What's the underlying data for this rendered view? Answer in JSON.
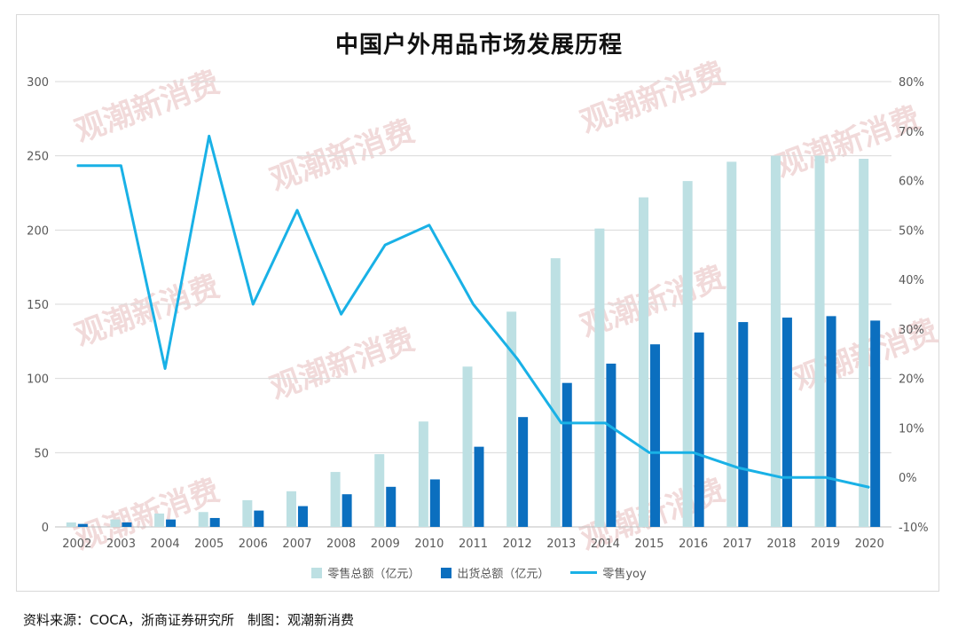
{
  "chart_data": {
    "type": "bar+line",
    "title": "中国户外用品市场发展历程",
    "categories": [
      "2002",
      "2003",
      "2004",
      "2005",
      "2006",
      "2007",
      "2008",
      "2009",
      "2010",
      "2011",
      "2012",
      "2013",
      "2014",
      "2015",
      "2016",
      "2017",
      "2018",
      "2019",
      "2020"
    ],
    "series": [
      {
        "name": "零售总额（亿元）",
        "type": "bar",
        "axis": "left",
        "color": "#bde0e3",
        "values": [
          3,
          5,
          9,
          10,
          18,
          24,
          37,
          49,
          71,
          108,
          145,
          181,
          201,
          222,
          233,
          246,
          250,
          250,
          248
        ]
      },
      {
        "name": "出货总额（亿元）",
        "type": "bar",
        "axis": "left",
        "color": "#0b6fbf",
        "values": [
          2,
          3,
          5,
          6,
          11,
          14,
          22,
          27,
          32,
          54,
          74,
          97,
          110,
          123,
          131,
          138,
          141,
          142,
          139
        ]
      },
      {
        "name": "零售yoy",
        "type": "line",
        "axis": "right",
        "color": "#19b1e6",
        "values": [
          63,
          63,
          22,
          69,
          35,
          54,
          33,
          47,
          51,
          35,
          24,
          11,
          11,
          5,
          5,
          2,
          0,
          0,
          -2
        ]
      }
    ],
    "left_axis": {
      "ylim": [
        0,
        300
      ],
      "ticks": [
        "0",
        "50",
        "100",
        "150",
        "200",
        "250",
        "300"
      ]
    },
    "right_axis": {
      "ylim": [
        -10,
        80
      ],
      "ticks": [
        "-10%",
        "0%",
        "10%",
        "20%",
        "30%",
        "40%",
        "50%",
        "60%",
        "70%",
        "80%"
      ]
    },
    "grid": true,
    "legend_position": "bottom"
  },
  "watermark": "观潮新消费",
  "source_text": "资料来源：COCA，浙商证券研究所　制图：观潮新消费"
}
